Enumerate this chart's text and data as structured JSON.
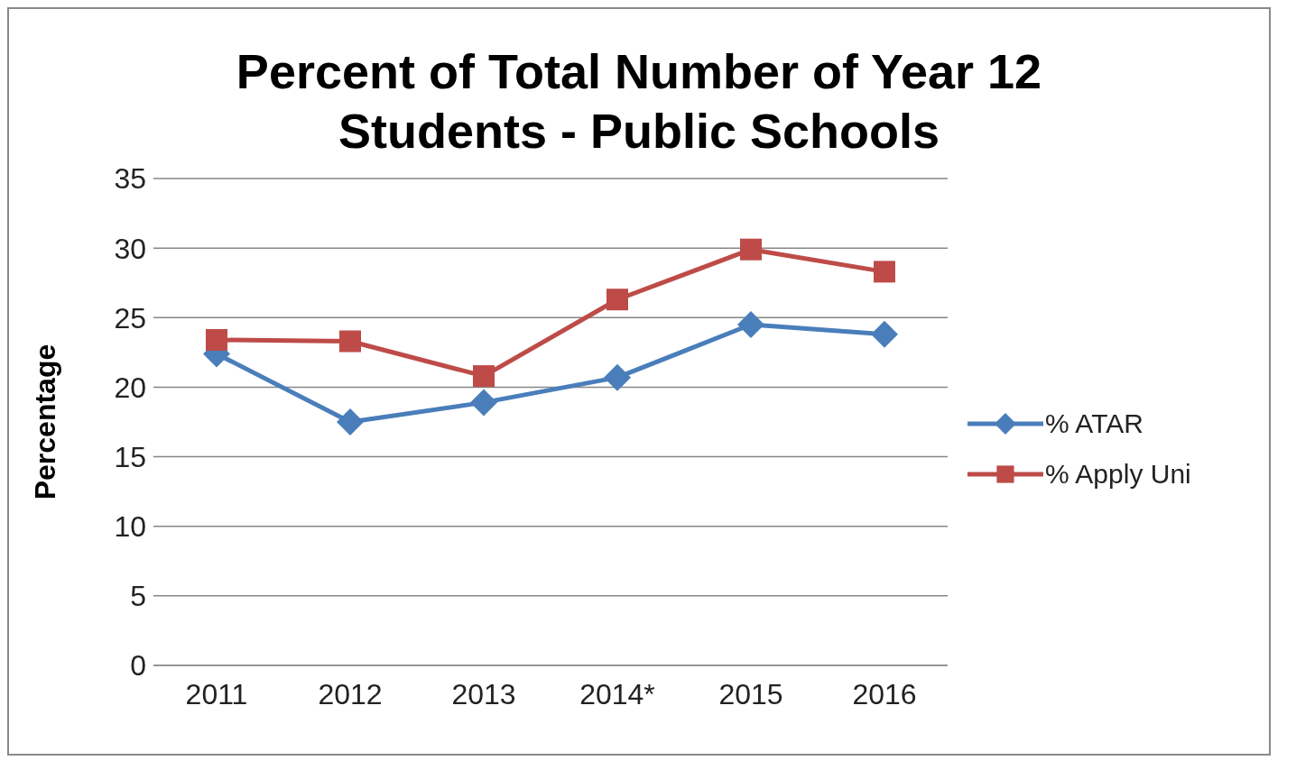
{
  "chart_data": {
    "type": "line",
    "title": "Percent of Total Number of Year 12 Students - Public Schools",
    "ylabel": "Percentage",
    "categories": [
      "2011",
      "2012",
      "2013",
      "2014*",
      "2015",
      "2016"
    ],
    "series": [
      {
        "name": "% ATAR",
        "color": "#4a7ebb",
        "marker": "diamond",
        "values": [
          22.4,
          17.5,
          18.9,
          20.7,
          24.5,
          23.8
        ]
      },
      {
        "name": "% Apply Uni",
        "color": "#be4b48",
        "marker": "square",
        "values": [
          23.4,
          23.3,
          20.8,
          26.3,
          29.9,
          28.3
        ]
      }
    ],
    "ylim": [
      0,
      35
    ],
    "yticks": [
      0,
      5,
      10,
      15,
      20,
      25,
      30,
      35
    ],
    "grid": "y",
    "legend": "right",
    "line_style": "solid"
  }
}
